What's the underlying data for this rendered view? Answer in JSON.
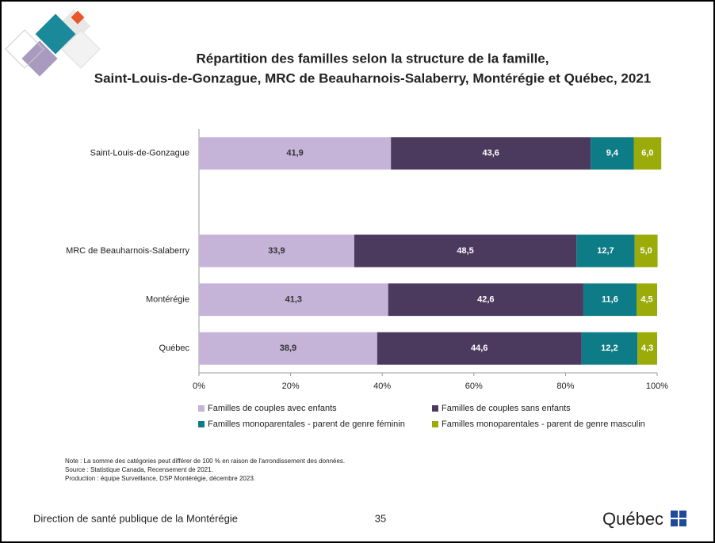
{
  "chart_data": {
    "type": "stacked-bar-horizontal",
    "title": [
      "Répartition des familles selon la structure de la famille,",
      "Saint-Louis-de-Gonzague, MRC de Beauharnois-Salaberry, Montérégie et Québec, 2021"
    ],
    "categories": [
      "Saint-Louis-de-Gonzague",
      null,
      "MRC de Beauharnois-Salaberry",
      "Montérégie",
      "Québec"
    ],
    "series": [
      {
        "name": "Familles de couples avec enfants",
        "color": "#c5b3d8",
        "text_color": "#333333",
        "values": [
          41.9,
          null,
          33.9,
          41.3,
          38.9
        ],
        "value_labels": [
          "41,9",
          null,
          "33,9",
          "41,3",
          "38,9"
        ]
      },
      {
        "name": "Familles de couples sans enfants",
        "color": "#4b3a5e",
        "text_color": "#ffffff",
        "values": [
          43.6,
          null,
          48.5,
          42.6,
          44.6
        ],
        "value_labels": [
          "43,6",
          null,
          "48,5",
          "42,6",
          "44,6"
        ]
      },
      {
        "name": "Familles monoparentales - parent de genre féminin",
        "color": "#0e7c86",
        "text_color": "#ffffff",
        "values": [
          9.4,
          null,
          12.7,
          11.6,
          12.2
        ],
        "value_labels": [
          "9,4",
          null,
          "12,7",
          "11,6",
          "12,2"
        ]
      },
      {
        "name": "Familles monoparentales - parent de genre masculin",
        "color": "#9aab0a",
        "text_color": "#ffffff",
        "values": [
          6.0,
          null,
          5.0,
          4.5,
          4.3
        ],
        "value_labels": [
          "6,0",
          null,
          "5,0",
          "4,5",
          "4,3"
        ]
      }
    ],
    "xlim": [
      0,
      100
    ],
    "xticks": [
      {
        "value": 0,
        "label": "0%"
      },
      {
        "value": 20,
        "label": "20%"
      },
      {
        "value": 40,
        "label": "40%"
      },
      {
        "value": 60,
        "label": "60%"
      },
      {
        "value": 80,
        "label": "80%"
      },
      {
        "value": 100,
        "label": "100%"
      }
    ],
    "grid": false
  },
  "notes": [
    "Note : La somme des catégories peut différer de 100 % en raison de l'arrondissement des données.",
    "Source : Statistique Canada, Recensement de 2021.",
    "Production : équipe Surveillance, DSP Montérégie, décembre 2023."
  ],
  "footer": {
    "organization": "Direction de santé publique de la Montérégie",
    "page": "35",
    "logo": "Québec"
  }
}
